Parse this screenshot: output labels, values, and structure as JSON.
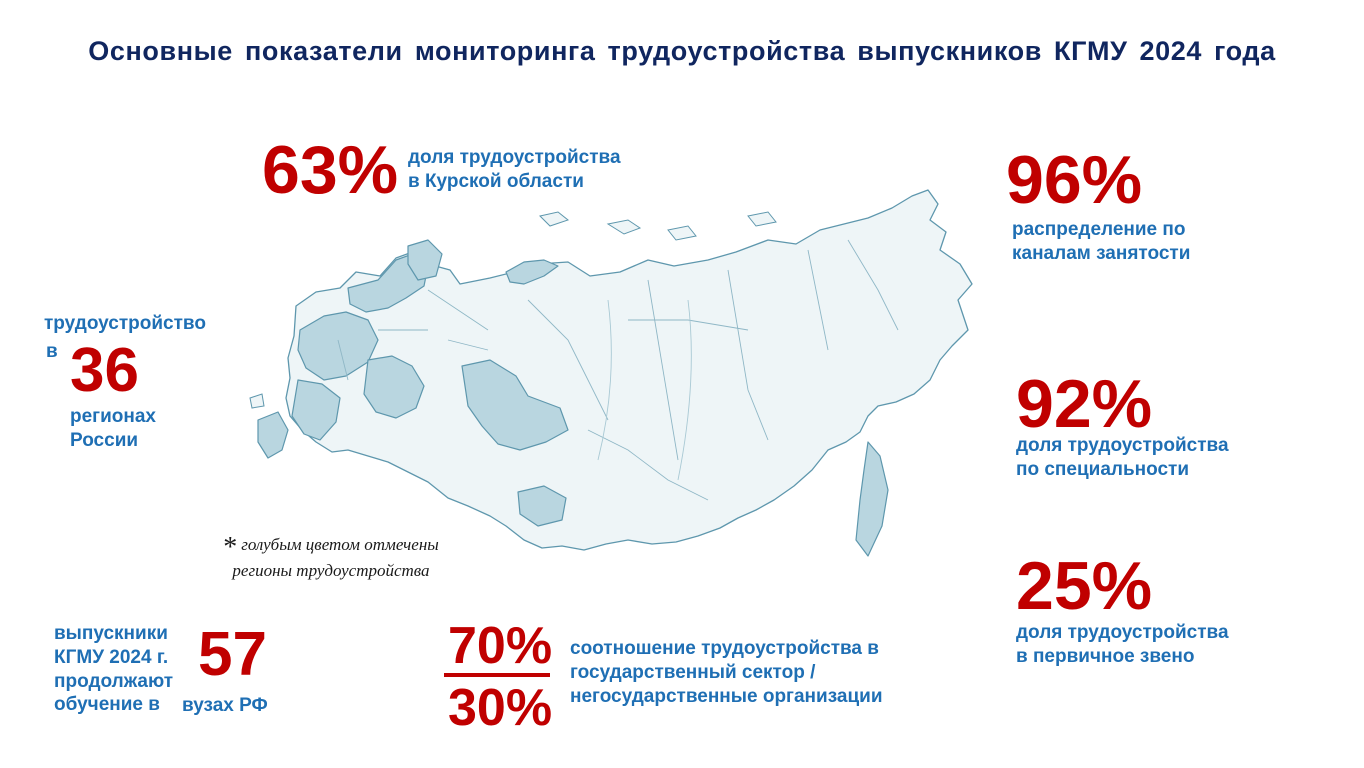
{
  "title": "Основные показатели мониторинга трудоустройства выпускников КГМУ 2024 года",
  "stats": {
    "kursk": {
      "value": "63%",
      "line1": "доля трудоустройства",
      "line2": "в Курской области"
    },
    "channels": {
      "value": "96%",
      "line1": "распределение по",
      "line2": "каналам занятости"
    },
    "specialty": {
      "value": "92%",
      "line1": "доля трудоустройства",
      "line2": "по специальности"
    },
    "primary": {
      "value": "25%",
      "line1": "доля трудоустройства",
      "line2": "в первичное звено"
    },
    "regions": {
      "pre1": "трудоустройство",
      "pre2": "в",
      "value": "36",
      "post1": "регионах",
      "post2": "России"
    },
    "study": {
      "line1": "выпускники",
      "line2": "КГМУ 2024 г.",
      "line3": "продолжают",
      "line4": "обучение в",
      "value": "57",
      "suffix": "вузах РФ"
    },
    "sector": {
      "numerator": "70%",
      "denominator": "30%",
      "line1": "соотношение трудоустройства  в",
      "line2": "государственный сектор /",
      "line3": "негосударственные организации"
    }
  },
  "map_note": {
    "star": "*",
    "line1": "голубым цветом отмечены",
    "line2": "регионы трудоустройства"
  },
  "colors": {
    "accent_red": "#c00000",
    "text_blue": "#1f6fb4",
    "title_navy": "#10265f",
    "map_highlight": "#b9d6e0",
    "map_base": "#eef5f7",
    "map_stroke": "#5e97ad"
  }
}
